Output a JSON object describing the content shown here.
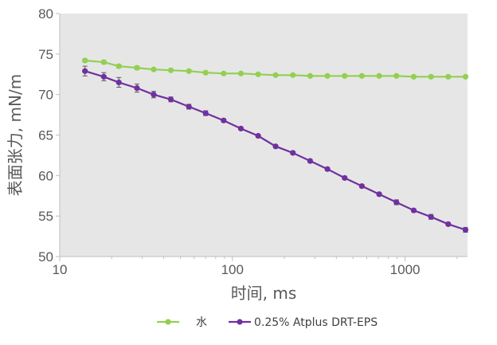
{
  "chart_data": {
    "type": "line",
    "xscale": "log",
    "xlabel": "时间, ms",
    "ylabel": "表面张力, mN/m",
    "xlim": [
      10,
      2300
    ],
    "ylim": [
      50,
      80
    ],
    "xticks": [
      10,
      100,
      1000
    ],
    "xtick_labels": [
      "10",
      "100",
      "1000"
    ],
    "yticks": [
      50,
      55,
      60,
      65,
      70,
      75,
      80
    ],
    "ytick_labels": [
      "50",
      "55",
      "60",
      "65",
      "70",
      "75",
      "80"
    ],
    "grid": false,
    "plot_background": "#e6e6e6",
    "legend_position": "bottom",
    "series": [
      {
        "name": "水",
        "color": "#92d050",
        "x": [
          14,
          18,
          22,
          28,
          35,
          44,
          56,
          70,
          89,
          112,
          141,
          178,
          224,
          282,
          355,
          447,
          562,
          708,
          891,
          1122,
          1413,
          1778,
          2239
        ],
        "y": [
          74.2,
          74.0,
          73.5,
          73.3,
          73.1,
          73.0,
          72.9,
          72.7,
          72.6,
          72.6,
          72.5,
          72.4,
          72.4,
          72.3,
          72.3,
          72.3,
          72.3,
          72.3,
          72.3,
          72.2,
          72.2,
          72.2,
          72.2
        ],
        "error": [
          0.2,
          0.2,
          0.2,
          0.2,
          0.1,
          0.1,
          0.1,
          0.1,
          0.1,
          0.1,
          0.1,
          0.1,
          0.1,
          0.1,
          0.1,
          0.1,
          0.1,
          0.1,
          0.1,
          0.1,
          0.1,
          0.1,
          0.1
        ]
      },
      {
        "name": "0.25% Atplus DRT-EPS",
        "color": "#7030a0",
        "x": [
          14,
          18,
          22,
          28,
          35,
          44,
          56,
          70,
          89,
          112,
          141,
          178,
          224,
          282,
          355,
          447,
          562,
          708,
          891,
          1122,
          1413,
          1778,
          2239
        ],
        "y": [
          72.9,
          72.2,
          71.5,
          70.8,
          70.0,
          69.4,
          68.5,
          67.7,
          66.8,
          65.8,
          64.9,
          63.6,
          62.8,
          61.8,
          60.8,
          59.7,
          58.7,
          57.7,
          56.7,
          55.7,
          54.9,
          54.0,
          53.3
        ],
        "error": [
          0.6,
          0.5,
          0.6,
          0.5,
          0.4,
          0.3,
          0.3,
          0.3,
          0.2,
          0.2,
          0.2,
          0.2,
          0.2,
          0.2,
          0.2,
          0.2,
          0.2,
          0.2,
          0.3,
          0.2,
          0.3,
          0.2,
          0.3
        ]
      }
    ]
  }
}
